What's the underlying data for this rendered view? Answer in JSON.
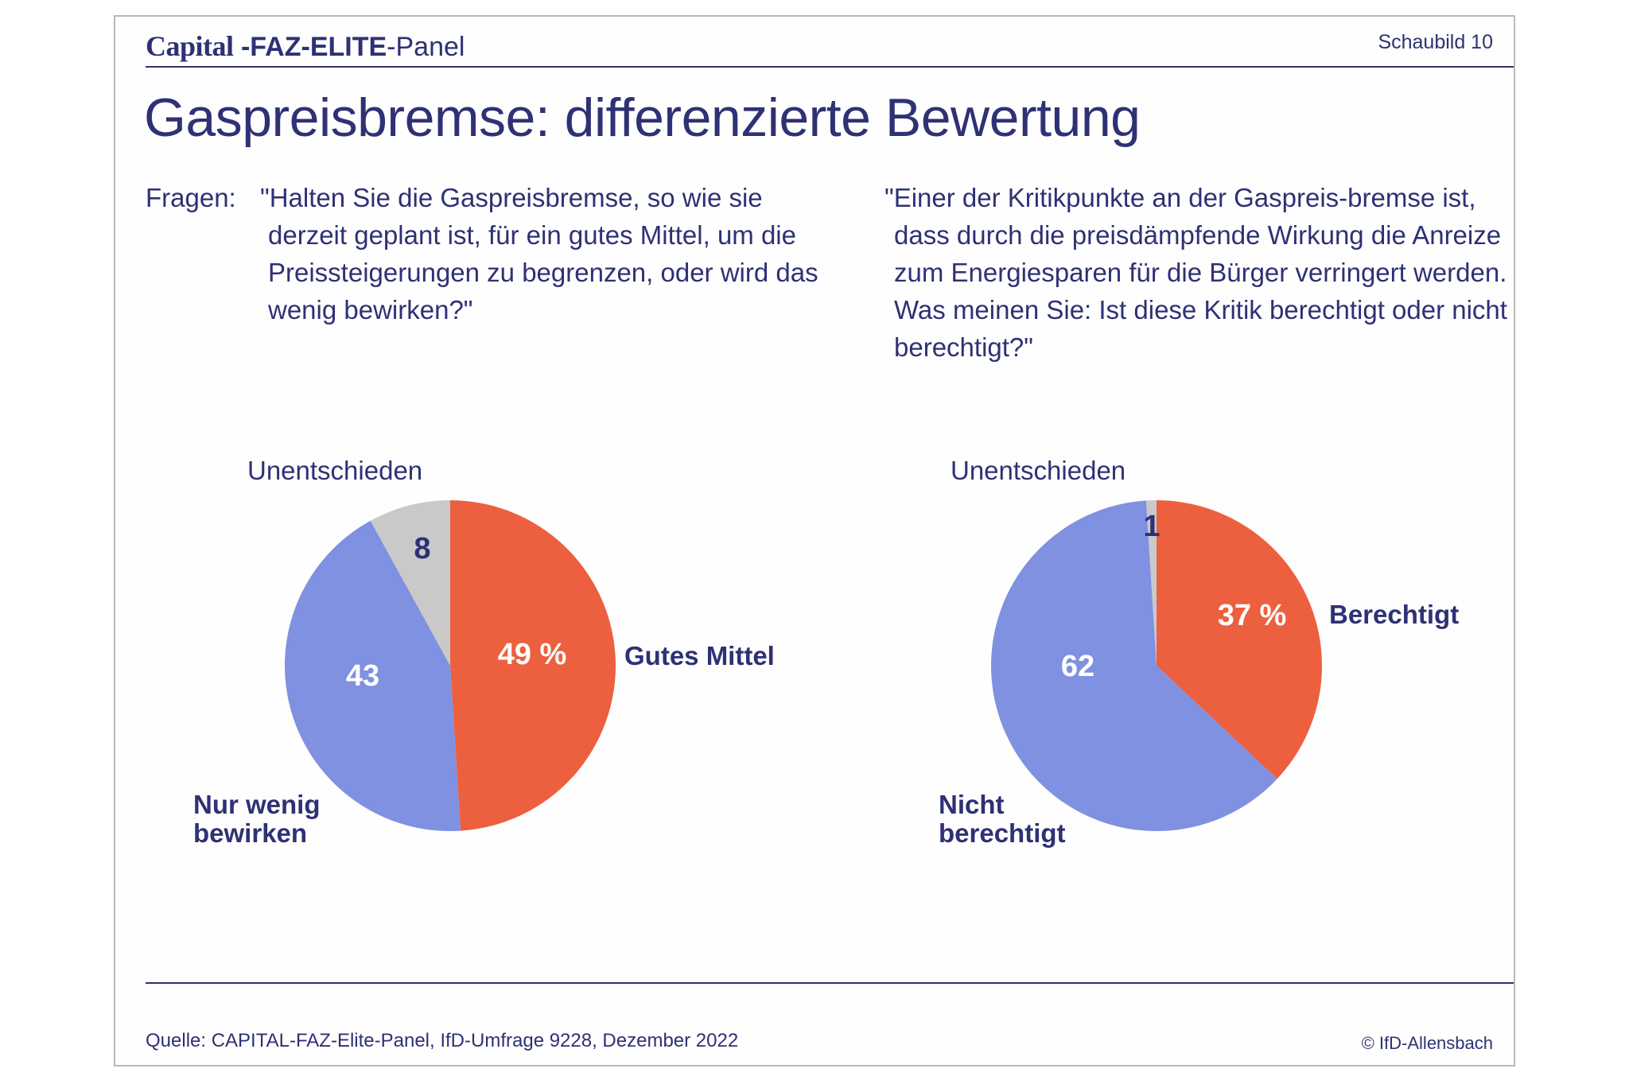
{
  "header": {
    "brand_capital": "Capital",
    "brand_faz": "-FAZ-ELITE",
    "brand_panel": "-Panel",
    "schaubild": "Schaubild 10"
  },
  "title": "Gaspreisbremse: differenzierte Bewertung",
  "questions": {
    "prefix": "Fragen:",
    "left": "\"Halten Sie die Gaspreisbremse, so wie sie derzeit geplant ist, für ein gutes Mittel, um die Preissteigerungen zu begrenzen, oder wird das wenig bewirken?\"",
    "right": "\"Einer der Kritikpunkte an der Gaspreis-bremse ist, dass durch die preisdämpfende Wirkung die Anreize zum Energiesparen für die Bürger verringert werden. Was meinen Sie: Ist diese Kritik berechtigt oder nicht berechtigt?\""
  },
  "chart_data": [
    {
      "type": "pie",
      "slices": [
        {
          "label": "Gutes Mittel",
          "value": 49,
          "value_label": "49 %",
          "color": "#ec6040"
        },
        {
          "label": "Nur wenig bewirken",
          "value": 43,
          "value_label": "43",
          "color": "#7f91e0"
        },
        {
          "label": "Unentschieden",
          "value": 8,
          "value_label": "8",
          "color": "#c9c9c9"
        }
      ]
    },
    {
      "type": "pie",
      "slices": [
        {
          "label": "Berechtigt",
          "value": 37,
          "value_label": "37 %",
          "color": "#ec6040"
        },
        {
          "label": "Nicht berechtigt",
          "value": 62,
          "value_label": "62",
          "color": "#7f91e0"
        },
        {
          "label": "Unentschieden",
          "value": 1,
          "value_label": "1",
          "color": "#c9c9c9"
        }
      ]
    }
  ],
  "footer": {
    "source": "Quelle: CAPITAL-FAZ-Elite-Panel, IfD-Umfrage 9228, Dezember 2022",
    "copyright": "© IfD-Allensbach"
  }
}
